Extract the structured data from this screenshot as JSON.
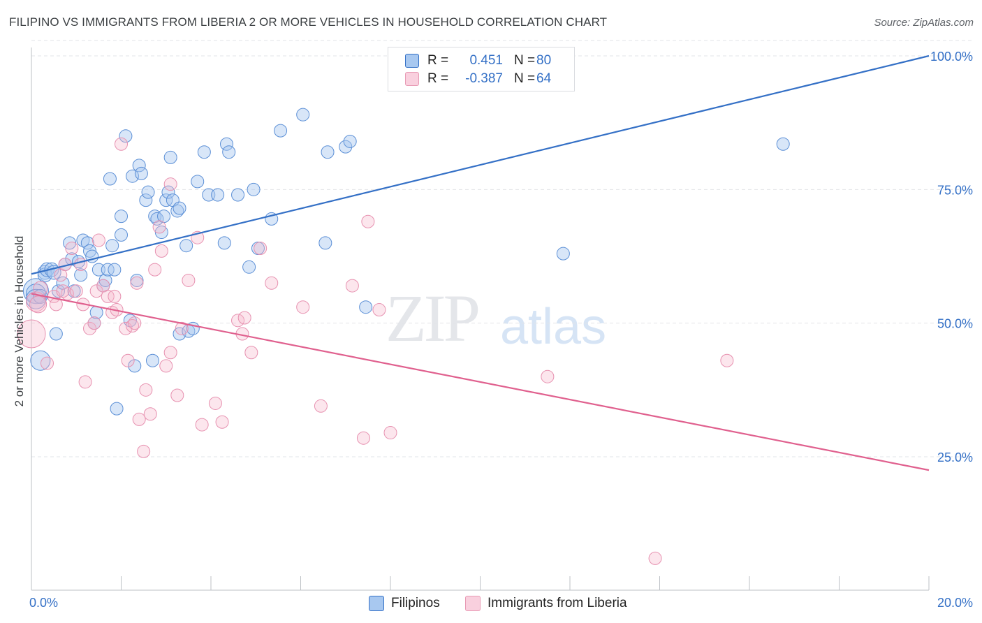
{
  "title": "FILIPINO VS IMMIGRANTS FROM LIBERIA 2 OR MORE VEHICLES IN HOUSEHOLD CORRELATION CHART",
  "source": "Source: ZipAtlas.com",
  "watermark": {
    "zip": "ZIP",
    "atlas": "atlas"
  },
  "colors": {
    "blue": "#3470c6",
    "blue_fill": "#a8c8f0",
    "pink": "#e0608e",
    "pink_fill": "#f5b8cc",
    "grid": "#e2e4e8"
  },
  "legend": {
    "rows": [
      {
        "r_label": "R =",
        "r_value": "0.451",
        "n_label": "N =",
        "n_value": "80"
      },
      {
        "r_label": "R =",
        "r_value": "-0.387",
        "n_label": "N =",
        "n_value": "64"
      }
    ]
  },
  "bottom_legend": {
    "series1": "Filipinos",
    "series2": "Immigrants from Liberia"
  },
  "chart_data": {
    "type": "scatter",
    "title": "FILIPINO VS IMMIGRANTS FROM LIBERIA 2 OR MORE VEHICLES IN HOUSEHOLD CORRELATION CHART",
    "xlabel": "",
    "ylabel": "2 or more Vehicles in Household",
    "xlim": [
      0,
      20
    ],
    "ylim": [
      0,
      105
    ],
    "x_tick_labels": [
      "0.0%",
      "20.0%"
    ],
    "y_ticks": [
      25,
      50,
      75,
      100
    ],
    "y_tick_labels": [
      "25.0%",
      "50.0%",
      "75.0%",
      "100.0%"
    ],
    "grid": true,
    "legend_position": "top-center",
    "series": [
      {
        "name": "Filipinos",
        "color": "#3470c6",
        "trend": {
          "x": [
            0,
            20
          ],
          "y": [
            59.2,
            100
          ]
        },
        "points": [
          [
            0.1,
            56,
            18
          ],
          [
            0.1,
            55.5,
            14
          ],
          [
            0.1,
            54.5,
            14
          ],
          [
            0.2,
            43,
            14
          ],
          [
            0.2,
            55,
            10
          ],
          [
            0.3,
            59.5,
            10
          ],
          [
            0.3,
            59,
            10
          ],
          [
            0.35,
            60,
            10
          ],
          [
            0.45,
            60,
            10
          ],
          [
            0.5,
            59.5,
            10
          ],
          [
            0.55,
            48,
            9
          ],
          [
            0.6,
            56,
            9
          ],
          [
            0.7,
            57.5,
            9
          ],
          [
            0.75,
            61,
            9
          ],
          [
            0.85,
            65,
            9
          ],
          [
            0.9,
            62,
            9
          ],
          [
            0.95,
            56,
            9
          ],
          [
            1.05,
            61.5,
            9
          ],
          [
            1.1,
            59,
            9
          ],
          [
            1.15,
            65.5,
            9
          ],
          [
            1.25,
            65,
            9
          ],
          [
            1.3,
            63.5,
            9
          ],
          [
            1.35,
            62.5,
            9
          ],
          [
            1.4,
            50,
            9
          ],
          [
            1.45,
            52,
            9
          ],
          [
            1.5,
            60,
            9
          ],
          [
            1.6,
            57,
            9
          ],
          [
            1.65,
            58,
            9
          ],
          [
            1.7,
            60,
            9
          ],
          [
            1.75,
            77,
            9
          ],
          [
            1.8,
            64.5,
            9
          ],
          [
            1.85,
            60,
            9
          ],
          [
            1.9,
            34,
            9
          ],
          [
            2.0,
            70,
            9
          ],
          [
            2.0,
            66.5,
            9
          ],
          [
            2.1,
            85,
            9
          ],
          [
            2.2,
            50.5,
            9
          ],
          [
            2.25,
            77.5,
            9
          ],
          [
            2.3,
            42,
            9
          ],
          [
            2.35,
            58,
            9
          ],
          [
            2.4,
            79.5,
            9
          ],
          [
            2.45,
            78,
            9
          ],
          [
            2.55,
            73,
            9
          ],
          [
            2.6,
            74.5,
            9
          ],
          [
            2.7,
            43,
            9
          ],
          [
            2.75,
            70,
            9
          ],
          [
            2.8,
            69.5,
            9
          ],
          [
            2.9,
            67,
            9
          ],
          [
            2.95,
            70,
            9
          ],
          [
            3.0,
            73,
            9
          ],
          [
            3.05,
            74.5,
            9
          ],
          [
            3.1,
            81,
            9
          ],
          [
            3.15,
            73,
            9
          ],
          [
            3.25,
            71,
            9
          ],
          [
            3.3,
            71.5,
            9
          ],
          [
            3.3,
            48,
            9
          ],
          [
            3.45,
            64.5,
            9
          ],
          [
            3.5,
            48.5,
            9
          ],
          [
            3.6,
            49,
            9
          ],
          [
            3.7,
            76.5,
            9
          ],
          [
            3.85,
            82,
            9
          ],
          [
            3.95,
            74,
            9
          ],
          [
            4.15,
            74,
            9
          ],
          [
            4.3,
            65,
            9
          ],
          [
            4.35,
            83.5,
            9
          ],
          [
            4.4,
            82,
            9
          ],
          [
            4.6,
            74,
            9
          ],
          [
            4.85,
            60.5,
            9
          ],
          [
            4.95,
            75,
            9
          ],
          [
            5.05,
            64,
            9
          ],
          [
            5.35,
            69.5,
            9
          ],
          [
            5.55,
            86,
            9
          ],
          [
            6.05,
            89,
            9
          ],
          [
            6.55,
            65,
            9
          ],
          [
            6.6,
            82,
            9
          ],
          [
            7.0,
            83,
            9
          ],
          [
            7.1,
            84,
            9
          ],
          [
            7.45,
            53,
            9
          ],
          [
            11.85,
            63,
            9
          ],
          [
            16.75,
            83.5,
            9
          ]
        ]
      },
      {
        "name": "Immigrants from Liberia",
        "color": "#e0608e",
        "trend": {
          "x": [
            0,
            20
          ],
          "y": [
            55.5,
            22.5
          ]
        },
        "points": [
          [
            0.0,
            48,
            20
          ],
          [
            0.1,
            54,
            14
          ],
          [
            0.15,
            53.5,
            12
          ],
          [
            0.2,
            56.5,
            10
          ],
          [
            0.35,
            42.5,
            9
          ],
          [
            0.5,
            55,
            9
          ],
          [
            0.55,
            53.5,
            9
          ],
          [
            0.65,
            59,
            9
          ],
          [
            0.75,
            61,
            9
          ],
          [
            0.8,
            55.5,
            9
          ],
          [
            0.9,
            64,
            9
          ],
          [
            1.0,
            56,
            9
          ],
          [
            1.1,
            61,
            9
          ],
          [
            1.15,
            53.5,
            9
          ],
          [
            1.2,
            39,
            9
          ],
          [
            1.3,
            49,
            9
          ],
          [
            1.4,
            50,
            9
          ],
          [
            1.45,
            56,
            9
          ],
          [
            1.5,
            65.5,
            9
          ],
          [
            1.6,
            57,
            9
          ],
          [
            1.7,
            55,
            9
          ],
          [
            1.8,
            52,
            9
          ],
          [
            1.85,
            55,
            9
          ],
          [
            1.9,
            52.5,
            9
          ],
          [
            2.0,
            83.5,
            9
          ],
          [
            2.1,
            49,
            9
          ],
          [
            2.15,
            43,
            9
          ],
          [
            2.25,
            49.5,
            9
          ],
          [
            2.35,
            57.5,
            9
          ],
          [
            2.4,
            32,
            9
          ],
          [
            2.5,
            26,
            9
          ],
          [
            2.55,
            37.5,
            9
          ],
          [
            2.65,
            33,
            9
          ],
          [
            2.75,
            60,
            9
          ],
          [
            2.85,
            68,
            9
          ],
          [
            2.9,
            63.5,
            9
          ],
          [
            3.0,
            42,
            9
          ],
          [
            3.1,
            44.5,
            9
          ],
          [
            3.1,
            76,
            9
          ],
          [
            3.25,
            36.5,
            9
          ],
          [
            3.35,
            49,
            9
          ],
          [
            3.5,
            58,
            9
          ],
          [
            3.7,
            66,
            9
          ],
          [
            3.8,
            31,
            9
          ],
          [
            4.1,
            35,
            9
          ],
          [
            4.25,
            31.5,
            9
          ],
          [
            4.6,
            50.5,
            9
          ],
          [
            4.75,
            51,
            9
          ],
          [
            4.9,
            44.5,
            9
          ],
          [
            5.1,
            64,
            9
          ],
          [
            5.35,
            57.5,
            9
          ],
          [
            6.05,
            53,
            9
          ],
          [
            6.45,
            34.5,
            9
          ],
          [
            7.15,
            57,
            9
          ],
          [
            7.4,
            28.5,
            9
          ],
          [
            7.5,
            69,
            9
          ],
          [
            7.75,
            52.5,
            9
          ],
          [
            8.0,
            29.5,
            9
          ],
          [
            11.5,
            40,
            9
          ],
          [
            13.9,
            6,
            9
          ],
          [
            15.5,
            43,
            9
          ],
          [
            0.7,
            56,
            9
          ],
          [
            2.3,
            50,
            9
          ],
          [
            4.7,
            48,
            9
          ]
        ]
      }
    ]
  }
}
